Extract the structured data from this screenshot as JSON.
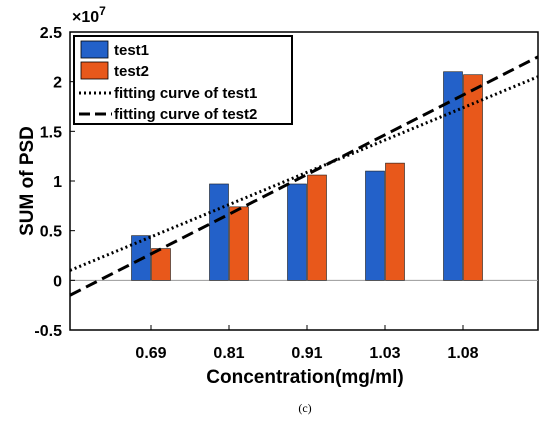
{
  "chart_data": {
    "type": "bar",
    "categories": [
      "0.69",
      "0.81",
      "0.91",
      "1.03",
      "1.08"
    ],
    "series": [
      {
        "name": "test1",
        "values": [
          0.45,
          0.97,
          0.97,
          1.1,
          2.1
        ],
        "color": "#2361c9"
      },
      {
        "name": "test2",
        "values": [
          0.32,
          0.74,
          1.06,
          1.18,
          2.07
        ],
        "color": "#e8581b"
      }
    ],
    "fits": [
      {
        "name": "fitting curve of test1",
        "style": "dotted",
        "y_start": 0.1,
        "y_end": 2.05
      },
      {
        "name": "fitting curve of test2",
        "style": "dashed",
        "y_start": -0.15,
        "y_end": 2.25
      }
    ],
    "xlabel": "Concentration(mg/ml)",
    "ylabel": "SUM of PSD",
    "y_multiplier": "×10",
    "y_exponent": "7",
    "ylim": [
      -0.5,
      2.5
    ],
    "yticks": [
      -0.5,
      0,
      0.5,
      1,
      1.5,
      2,
      2.5
    ],
    "ytick_labels": [
      "-0.5",
      "0",
      "0.5",
      "1",
      "1.5",
      "2",
      "2.5"
    ],
    "legend_position": "top-left",
    "grid": false
  },
  "caption": "(c)"
}
